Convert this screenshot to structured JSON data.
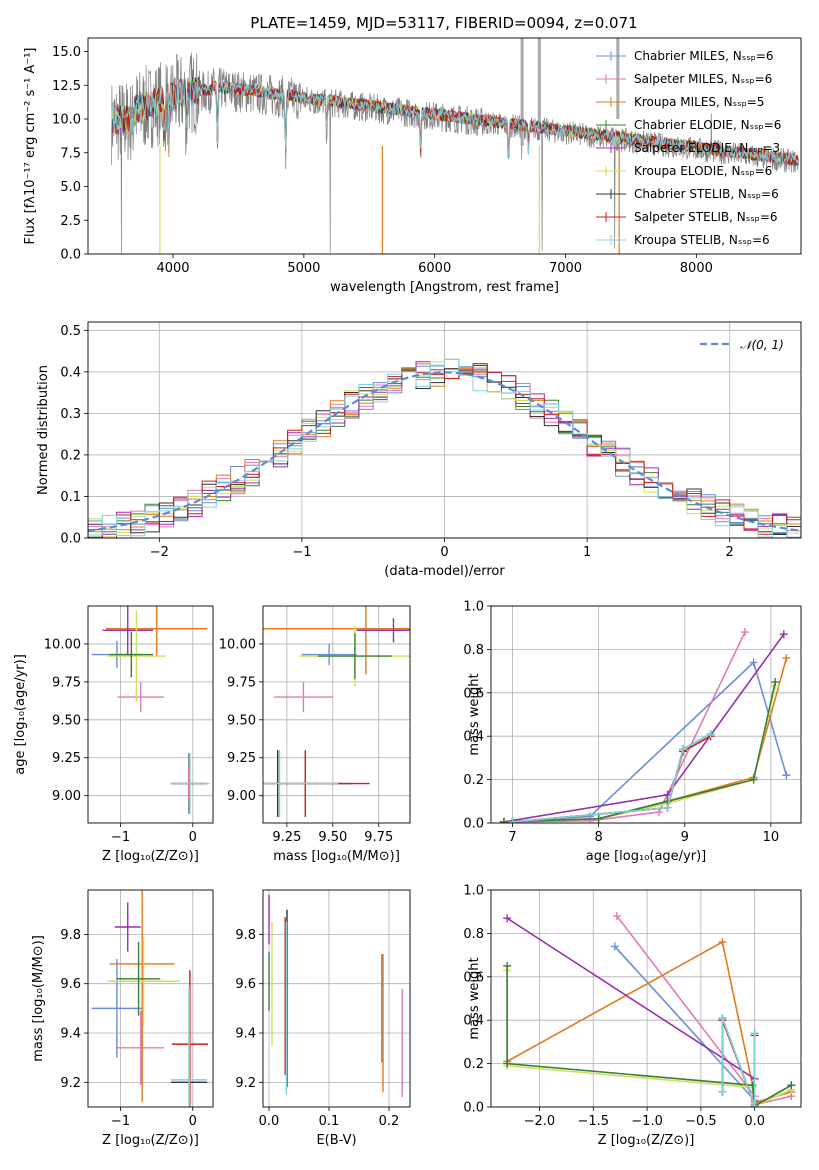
{
  "chart_data": [
    {
      "type": "line",
      "title": "PLATE=1459, MJD=53117, FIBERID=0094, z=0.071",
      "xlabel": "wavelength [Angstrom, rest frame]",
      "ylabel": "Flux [fλ10⁻¹⁷ erg cm⁻² s⁻¹ A⁻¹]",
      "xlim": [
        3350,
        8800
      ],
      "ylim": [
        0,
        16
      ],
      "xticks": [
        "4000",
        "5000",
        "6000",
        "7000",
        "8000"
      ],
      "yticks": [
        "0.0",
        "2.5",
        "5.0",
        "7.5",
        "10.0",
        "12.5",
        "15.0"
      ],
      "legend_position": "top-right",
      "legend": [
        {
          "label": "Chabrier MILES, Nₛₛₚ=6",
          "color": "#6a8fd8",
          "marker": "|"
        },
        {
          "label": "Salpeter MILES, Nₛₛₚ=6",
          "color": "#e07bb5",
          "marker": "+"
        },
        {
          "label": "Kroupa MILES, Nₛₛₚ=5",
          "color": "#e07b1f",
          "marker": "|"
        },
        {
          "label": "Chabrier ELODIE, Nₛₛₚ=6",
          "color": "#3a7d3a",
          "marker": "+"
        },
        {
          "label": "Salpeter ELODIE, Nₛₛₚ=3",
          "color": "#9a2fb0",
          "marker": "|"
        },
        {
          "label": "Kroupa ELODIE, Nₛₛₚ=6",
          "color": "#cde05a",
          "marker": "+"
        },
        {
          "label": "Chabrier STELIB, Nₛₛₚ=6",
          "color": "#333333",
          "marker": "|"
        },
        {
          "label": "Salpeter STELIB, Nₛₛₚ=6",
          "color": "#cc1f1f",
          "marker": "+"
        },
        {
          "label": "Kroupa STELIB, Nₛₛₚ=6",
          "color": "#7fd4dc",
          "marker": "|"
        }
      ],
      "grid": false
    },
    {
      "type": "line",
      "xlabel": "(data-model)/error",
      "ylabel": "Normed distribution",
      "xlim": [
        -2.5,
        2.5
      ],
      "ylim": [
        0,
        0.52
      ],
      "xticks": [
        "−2",
        "−1",
        "0",
        "1",
        "2"
      ],
      "yticks": [
        "0.0",
        "0.1",
        "0.2",
        "0.3",
        "0.4",
        "0.5"
      ],
      "grid": true,
      "legend": [
        {
          "label": "𝒩(0, 1)",
          "color": "#5b8bd4",
          "style": "dashed"
        }
      ],
      "legend_position": "top-right",
      "hist_bin_width": 0.1
    },
    {
      "type": "scatter",
      "xlabel": "Z [log₁₀(Z/Z⊙)]",
      "ylabel": "age  [log₁₀(age/yr)]",
      "xlim": [
        -1.45,
        0.28
      ],
      "ylim": [
        8.82,
        10.25
      ],
      "xticks": [
        "−1",
        "0"
      ],
      "yticks": [
        "9.00",
        "9.25",
        "9.50",
        "9.75",
        "10.00"
      ],
      "grid": true,
      "crosses": [
        {
          "x": -1.05,
          "xerr": 0.35,
          "y": 9.93,
          "yerr": 0.09,
          "color": "#6a8fd8"
        },
        {
          "x": -0.72,
          "xerr": 0.32,
          "y": 9.65,
          "yerr": 0.1,
          "color": "#e07bb5"
        },
        {
          "x": -0.5,
          "xerr": 0.7,
          "y": 10.1,
          "yerr": 0.18,
          "color": "#e07b1f"
        },
        {
          "x": -0.9,
          "xerr": 0.35,
          "y": 10.09,
          "yerr": 0.16,
          "color": "#9a2fb0"
        },
        {
          "x": -0.78,
          "xerr": 0.4,
          "y": 9.92,
          "yerr": 0.3,
          "color": "#cde05a"
        },
        {
          "x": -0.85,
          "xerr": 0.3,
          "y": 9.93,
          "yerr": 0.15,
          "color": "#3a7d3a"
        },
        {
          "x": -0.05,
          "xerr": 0.25,
          "y": 9.08,
          "yerr": 0.2,
          "color": "#333333"
        },
        {
          "x": -0.05,
          "xerr": 0.22,
          "y": 9.08,
          "yerr": 0.1,
          "color": "#cc1f1f"
        },
        {
          "x": -0.04,
          "xerr": 0.27,
          "y": 9.08,
          "yerr": 0.2,
          "color": "#7fd4dc"
        }
      ]
    },
    {
      "type": "scatter",
      "xlabel": "mass [log₁₀(M/M⊙)]",
      "ylabel": "",
      "xlim": [
        9.12,
        9.92
      ],
      "ylim": [
        8.82,
        10.25
      ],
      "xticks": [
        "9.25",
        "9.50",
        "9.75"
      ],
      "yticks": [
        "9.00",
        "9.25",
        "9.50",
        "9.75",
        "10.00"
      ],
      "grid": true,
      "crosses": [
        {
          "x": 9.48,
          "xerr": 0.15,
          "y": 9.93,
          "yerr": 0.07,
          "color": "#6a8fd8"
        },
        {
          "x": 9.34,
          "xerr": 0.16,
          "y": 9.65,
          "yerr": 0.1,
          "color": "#e07bb5"
        },
        {
          "x": 9.68,
          "xerr": 0.56,
          "y": 10.1,
          "yerr": 0.3,
          "color": "#e07b1f"
        },
        {
          "x": 9.83,
          "xerr": 0.2,
          "y": 10.09,
          "yerr": 0.08,
          "color": "#9a2fb0"
        },
        {
          "x": 9.62,
          "xerr": 0.3,
          "y": 9.92,
          "yerr": 0.2,
          "color": "#cde05a"
        },
        {
          "x": 9.62,
          "xerr": 0.2,
          "y": 9.92,
          "yerr": 0.15,
          "color": "#3a7d3a"
        },
        {
          "x": 9.2,
          "xerr": 0.4,
          "y": 9.08,
          "yerr": 0.22,
          "color": "#333333"
        },
        {
          "x": 9.35,
          "xerr": 0.35,
          "y": 9.08,
          "yerr": 0.22,
          "color": "#cc1f1f"
        },
        {
          "x": 9.21,
          "xerr": 0.32,
          "y": 9.08,
          "yerr": 0.22,
          "color": "#7fd4dc"
        }
      ]
    },
    {
      "type": "line",
      "xlabel": "age  [log₁₀(age/yr)]",
      "ylabel": "mass weight",
      "xlim": [
        6.75,
        10.35
      ],
      "ylim": [
        0,
        1
      ],
      "xticks": [
        "7",
        "8",
        "9",
        "10"
      ],
      "yticks": [
        "0.0",
        "0.2",
        "0.4",
        "0.6",
        "0.8",
        "1.0"
      ],
      "grid": true,
      "series": [
        {
          "color": "#6a8fd8",
          "x": [
            6.9,
            7.9,
            9.8,
            10.18
          ],
          "y": [
            0.005,
            0.03,
            0.74,
            0.22
          ]
        },
        {
          "color": "#e07bb5",
          "x": [
            6.9,
            7.9,
            8.7,
            9.7
          ],
          "y": [
            0.005,
            0.01,
            0.05,
            0.88
          ]
        },
        {
          "color": "#e07b1f",
          "x": [
            6.9,
            8.0,
            8.8,
            9.8,
            10.18
          ],
          "y": [
            0.005,
            0.02,
            0.1,
            0.21,
            0.76
          ]
        },
        {
          "color": "#9a2fb0",
          "x": [
            6.9,
            8.8,
            10.15
          ],
          "y": [
            0.005,
            0.13,
            0.87
          ]
        },
        {
          "color": "#cde05a",
          "x": [
            6.9,
            8.0,
            8.8,
            9.8,
            10.05
          ],
          "y": [
            0.005,
            0.02,
            0.09,
            0.2,
            0.63
          ]
        },
        {
          "color": "#3a7d3a",
          "x": [
            6.9,
            8.0,
            8.8,
            9.8,
            10.05
          ],
          "y": [
            0.005,
            0.02,
            0.1,
            0.2,
            0.65
          ]
        },
        {
          "color": "#333333",
          "x": [
            7.0,
            8.8,
            8.98,
            9.3
          ],
          "y": [
            0.005,
            0.07,
            0.34,
            0.41
          ]
        },
        {
          "color": "#cc1f1f",
          "x": [
            7.0,
            8.8,
            8.98,
            9.3
          ],
          "y": [
            0.005,
            0.07,
            0.33,
            0.4
          ]
        },
        {
          "color": "#7fd4dc",
          "x": [
            7.0,
            8.8,
            8.98,
            9.3
          ],
          "y": [
            0.005,
            0.07,
            0.34,
            0.41
          ]
        }
      ]
    },
    {
      "type": "scatter",
      "xlabel": "Z [log₁₀(Z/Z⊙)]",
      "ylabel": "mass [log₁₀(M/M⊙)]",
      "xlim": [
        -1.45,
        0.28
      ],
      "ylim": [
        9.1,
        9.98
      ],
      "xticks": [
        "−1",
        "0"
      ],
      "yticks": [
        "9.2",
        "9.4",
        "9.6",
        "9.8"
      ],
      "grid": true,
      "crosses": [
        {
          "x": -1.05,
          "xerr": 0.35,
          "y": 9.5,
          "yerr": 0.2,
          "color": "#6a8fd8"
        },
        {
          "x": -0.72,
          "xerr": 0.32,
          "y": 9.34,
          "yerr": 0.15,
          "color": "#e07bb5"
        },
        {
          "x": -0.7,
          "xerr": 0.45,
          "y": 9.68,
          "yerr": 0.56,
          "color": "#e07b1f"
        },
        {
          "x": -0.9,
          "xerr": 0.18,
          "y": 9.83,
          "yerr": 0.1,
          "color": "#9a2fb0"
        },
        {
          "x": -0.68,
          "xerr": 0.5,
          "y": 9.61,
          "yerr": 0.18,
          "color": "#cde05a"
        },
        {
          "x": -0.75,
          "xerr": 0.3,
          "y": 9.62,
          "yerr": 0.15,
          "color": "#3a7d3a"
        },
        {
          "x": -0.05,
          "xerr": 0.25,
          "y": 9.2,
          "yerr": 0.38,
          "color": "#333333"
        },
        {
          "x": -0.04,
          "xerr": 0.25,
          "y": 9.355,
          "yerr": 0.3,
          "color": "#cc1f1f"
        },
        {
          "x": -0.05,
          "xerr": 0.25,
          "y": 9.21,
          "yerr": 0.38,
          "color": "#7fd4dc"
        }
      ]
    },
    {
      "type": "scatter",
      "xlabel": "E(B-V)",
      "ylabel": "",
      "xlim": [
        -0.01,
        0.235
      ],
      "ylim": [
        9.1,
        9.98
      ],
      "xticks": [
        "0.0",
        "0.1",
        "0.2"
      ],
      "yticks": [
        "9.2",
        "9.4",
        "9.6",
        "9.8"
      ],
      "grid": true,
      "crosses": [
        {
          "x": 0.188,
          "xerr": 0,
          "y": 9.5,
          "yerr": 0.22,
          "color": "#6a8fd8"
        },
        {
          "x": 0.222,
          "xerr": 0,
          "y": 9.36,
          "yerr": 0.22,
          "color": "#e07bb5"
        },
        {
          "x": 0.19,
          "xerr": 0,
          "y": 9.44,
          "yerr": 0.28,
          "color": "#e07b1f"
        },
        {
          "x": 0.0,
          "xerr": 0,
          "y": 9.86,
          "yerr": 0.1,
          "color": "#9a2fb0"
        },
        {
          "x": 0.005,
          "xerr": 0,
          "y": 9.6,
          "yerr": 0.25,
          "color": "#cde05a"
        },
        {
          "x": 0.0,
          "xerr": 0,
          "y": 9.61,
          "yerr": 0.12,
          "color": "#3a7d3a"
        },
        {
          "x": 0.03,
          "xerr": 0,
          "y": 9.54,
          "yerr": 0.36,
          "color": "#333333"
        },
        {
          "x": 0.027,
          "xerr": 0,
          "y": 9.55,
          "yerr": 0.32,
          "color": "#cc1f1f"
        },
        {
          "x": 0.029,
          "xerr": 0,
          "y": 9.5,
          "yerr": 0.35,
          "color": "#7fd4dc"
        }
      ]
    },
    {
      "type": "line",
      "xlabel": "Z [log₁₀(Z/Z⊙)]",
      "ylabel": "mass weight",
      "xlim": [
        -2.45,
        0.43
      ],
      "ylim": [
        0,
        1
      ],
      "xticks": [
        "−2.0",
        "−1.5",
        "−1.0",
        "−0.5",
        "0.0"
      ],
      "yticks": [
        "0.0",
        "0.2",
        "0.4",
        "0.6",
        "0.8",
        "1.0"
      ],
      "grid": true,
      "series": [
        {
          "color": "#6a8fd8",
          "x": [
            -1.3,
            0.0,
            0.0,
            0.34
          ],
          "y": [
            0.74,
            0.03,
            0.005,
            0.1
          ]
        },
        {
          "color": "#e07bb5",
          "x": [
            -1.28,
            0.0,
            0.0,
            0.34
          ],
          "y": [
            0.88,
            0.05,
            0.01,
            0.05
          ]
        },
        {
          "color": "#e07b1f",
          "x": [
            -2.3,
            -0.3,
            -0.02,
            0.0,
            0.34
          ],
          "y": [
            0.21,
            0.76,
            0.1,
            0.02,
            0.07
          ]
        },
        {
          "color": "#9a2fb0",
          "x": [
            -2.3,
            0.0,
            0.0
          ],
          "y": [
            0.87,
            0.13,
            0.005
          ]
        },
        {
          "color": "#cde05a",
          "x": [
            -2.3,
            -2.3,
            -0.02,
            0.0,
            0.34
          ],
          "y": [
            0.63,
            0.19,
            0.09,
            0.005,
            0.08
          ]
        },
        {
          "color": "#3a7d3a",
          "x": [
            -2.3,
            -2.3,
            -0.02,
            0.0,
            0.34
          ],
          "y": [
            0.65,
            0.2,
            0.1,
            0.005,
            0.1
          ]
        },
        {
          "color": "#333333",
          "x": [
            -0.3,
            -0.3,
            0.0,
            0.0
          ],
          "y": [
            0.07,
            0.41,
            0.005,
            0.34
          ]
        },
        {
          "color": "#cc1f1f",
          "x": [
            -0.3,
            -0.3,
            0.0,
            0.0
          ],
          "y": [
            0.07,
            0.4,
            0.005,
            0.33
          ]
        },
        {
          "color": "#7fd4dc",
          "x": [
            -0.3,
            -0.3,
            0.0,
            0.0
          ],
          "y": [
            0.07,
            0.41,
            0.005,
            0.34
          ]
        }
      ]
    }
  ]
}
